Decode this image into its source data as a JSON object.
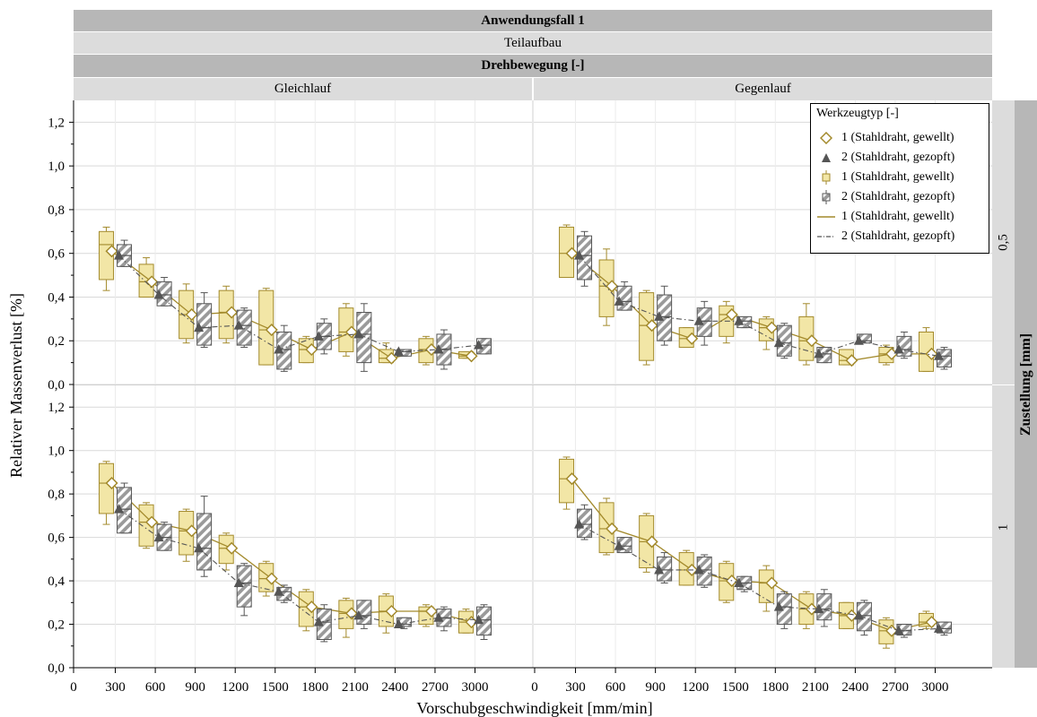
{
  "header": {
    "title": "Anwendungsfall 1",
    "subtitle": "Teilaufbau",
    "facet_col_title": "Drehbewegung [-]",
    "facet_cols": [
      "Gleichlauf",
      "Gegenlauf"
    ],
    "facet_row_title": "Zustellung [mm]",
    "facet_rows": [
      "0,5",
      "1"
    ]
  },
  "axes": {
    "xlabel": "Vorschubgeschwindigkeit [mm/min]",
    "ylabel": "Relativer Massenverlust [%]",
    "x_ticks": [
      "0",
      "300",
      "600",
      "900",
      "1200",
      "1500",
      "1800",
      "2100",
      "2400",
      "2700",
      "3000"
    ],
    "y_ticks": [
      "0,0",
      "0,2",
      "0,4",
      "0,6",
      "0,8",
      "1,0",
      "1,2"
    ]
  },
  "legend": {
    "title": "Werkzeugtyp [-]",
    "entries": [
      {
        "label": "1 (Stahldraht, gewellt)",
        "symbol": "diamond-icon"
      },
      {
        "label": "2 (Stahldraht, gezopft)",
        "symbol": "triangle-icon"
      },
      {
        "label": "1 (Stahldraht, gewellt)",
        "symbol": "box-yellow-icon"
      },
      {
        "label": "2 (Stahldraht, gezopft)",
        "symbol": "box-hatched-icon"
      },
      {
        "label": "1 (Stahldraht, gewellt)",
        "symbol": "solid-line-icon"
      },
      {
        "label": "2 (Stahldraht, gezopft)",
        "symbol": "dashdot-line-icon"
      }
    ]
  },
  "colors": {
    "type1": "#a38a2c",
    "type1_fill": "#f2e6a6",
    "type2": "#555555",
    "type2_fill": "#9a9a9a",
    "grid": "#d9d9d9",
    "header_dark": "#b7b7b7",
    "header_light": "#dcdcdc"
  },
  "chart_data": {
    "type": "box",
    "x": [
      300,
      600,
      900,
      1200,
      1500,
      1800,
      2100,
      2400,
      2700,
      3000
    ],
    "xlim": [
      0,
      3200
    ],
    "ylim": [
      0,
      1.3
    ],
    "panels": [
      {
        "col": "Gleichlauf",
        "row": "0,5",
        "series": [
          {
            "name": "1 (Stahldraht, gewellt)",
            "means": [
              0.61,
              0.47,
              0.32,
              0.33,
              0.25,
              0.16,
              0.24,
              0.12,
              0.16,
              0.13
            ],
            "boxes": [
              [
                0.43,
                0.48,
                0.64,
                0.7,
                0.72
              ],
              [
                0.4,
                0.4,
                0.47,
                0.55,
                0.58
              ],
              [
                0.19,
                0.21,
                0.32,
                0.43,
                0.46
              ],
              [
                0.19,
                0.21,
                0.33,
                0.43,
                0.45
              ],
              [
                0.09,
                0.09,
                0.25,
                0.43,
                0.44
              ],
              [
                0.1,
                0.1,
                0.16,
                0.21,
                0.22
              ],
              [
                0.13,
                0.15,
                0.24,
                0.35,
                0.37
              ],
              [
                0.1,
                0.1,
                0.12,
                0.16,
                0.19
              ],
              [
                0.09,
                0.1,
                0.16,
                0.21,
                0.22
              ],
              [
                0.12,
                0.12,
                0.13,
                0.15,
                0.15
              ]
            ]
          },
          {
            "name": "2 (Stahldraht, gezopft)",
            "means": [
              0.59,
              0.41,
              0.26,
              0.27,
              0.16,
              0.22,
              0.23,
              0.15,
              0.16,
              0.18
            ],
            "boxes": [
              [
                0.54,
                0.54,
                0.59,
                0.64,
                0.66
              ],
              [
                0.36,
                0.36,
                0.41,
                0.47,
                0.49
              ],
              [
                0.17,
                0.18,
                0.26,
                0.37,
                0.42
              ],
              [
                0.17,
                0.18,
                0.27,
                0.34,
                0.35
              ],
              [
                0.06,
                0.07,
                0.16,
                0.24,
                0.27
              ],
              [
                0.14,
                0.16,
                0.22,
                0.28,
                0.3
              ],
              [
                0.06,
                0.1,
                0.23,
                0.33,
                0.37
              ],
              [
                0.13,
                0.13,
                0.15,
                0.16,
                0.16
              ],
              [
                0.07,
                0.09,
                0.16,
                0.23,
                0.25
              ],
              [
                0.14,
                0.14,
                0.18,
                0.21,
                0.21
              ]
            ]
          }
        ]
      },
      {
        "col": "Gegenlauf",
        "row": "0,5",
        "series": [
          {
            "name": "1 (Stahldraht, gewellt)",
            "means": [
              0.6,
              0.45,
              0.27,
              0.21,
              0.32,
              0.26,
              0.2,
              0.11,
              0.14,
              0.14
            ],
            "boxes": [
              [
                0.49,
                0.49,
                0.6,
                0.72,
                0.73
              ],
              [
                0.27,
                0.31,
                0.45,
                0.57,
                0.62
              ],
              [
                0.09,
                0.11,
                0.27,
                0.42,
                0.43
              ],
              [
                0.17,
                0.17,
                0.21,
                0.26,
                0.26
              ],
              [
                0.19,
                0.22,
                0.32,
                0.36,
                0.38
              ],
              [
                0.16,
                0.2,
                0.26,
                0.3,
                0.31
              ],
              [
                0.09,
                0.11,
                0.2,
                0.31,
                0.37
              ],
              [
                0.09,
                0.09,
                0.11,
                0.16,
                0.16
              ],
              [
                0.09,
                0.1,
                0.14,
                0.17,
                0.18
              ],
              [
                0.06,
                0.06,
                0.14,
                0.24,
                0.26
              ]
            ]
          },
          {
            "name": "2 (Stahldraht, gezopft)",
            "means": [
              0.59,
              0.38,
              0.31,
              0.29,
              0.29,
              0.19,
              0.14,
              0.2,
              0.16,
              0.13
            ],
            "boxes": [
              [
                0.45,
                0.48,
                0.59,
                0.68,
                0.7
              ],
              [
                0.34,
                0.34,
                0.38,
                0.45,
                0.47
              ],
              [
                0.18,
                0.2,
                0.31,
                0.41,
                0.45
              ],
              [
                0.18,
                0.22,
                0.29,
                0.35,
                0.38
              ],
              [
                0.26,
                0.26,
                0.29,
                0.31,
                0.31
              ],
              [
                0.12,
                0.13,
                0.19,
                0.27,
                0.28
              ],
              [
                0.1,
                0.1,
                0.14,
                0.17,
                0.17
              ],
              [
                0.19,
                0.19,
                0.2,
                0.23,
                0.23
              ],
              [
                0.12,
                0.13,
                0.16,
                0.22,
                0.24
              ],
              [
                0.07,
                0.08,
                0.13,
                0.16,
                0.17
              ]
            ]
          }
        ]
      },
      {
        "col": "Gleichlauf",
        "row": "1",
        "series": [
          {
            "name": "1 (Stahldraht, gewellt)",
            "means": [
              0.85,
              0.67,
              0.63,
              0.55,
              0.41,
              0.28,
              0.25,
              0.26,
              0.26,
              0.21
            ],
            "boxes": [
              [
                0.66,
                0.71,
                0.85,
                0.94,
                0.95
              ],
              [
                0.55,
                0.56,
                0.67,
                0.75,
                0.76
              ],
              [
                0.49,
                0.52,
                0.63,
                0.72,
                0.73
              ],
              [
                0.45,
                0.48,
                0.55,
                0.61,
                0.62
              ],
              [
                0.33,
                0.35,
                0.41,
                0.48,
                0.49
              ],
              [
                0.17,
                0.19,
                0.28,
                0.35,
                0.36
              ],
              [
                0.14,
                0.18,
                0.25,
                0.31,
                0.32
              ],
              [
                0.16,
                0.19,
                0.26,
                0.33,
                0.34
              ],
              [
                0.19,
                0.2,
                0.26,
                0.28,
                0.29
              ],
              [
                0.16,
                0.16,
                0.21,
                0.26,
                0.27
              ]
            ]
          },
          {
            "name": "2 (Stahldraht, gezopft)",
            "means": [
              0.73,
              0.6,
              0.55,
              0.39,
              0.35,
              0.21,
              0.24,
              0.2,
              0.23,
              0.22
            ],
            "boxes": [
              [
                0.62,
                0.62,
                0.73,
                0.83,
                0.85
              ],
              [
                0.54,
                0.54,
                0.6,
                0.66,
                0.67
              ],
              [
                0.42,
                0.45,
                0.55,
                0.71,
                0.79
              ],
              [
                0.24,
                0.28,
                0.39,
                0.47,
                0.48
              ],
              [
                0.3,
                0.31,
                0.35,
                0.37,
                0.38
              ],
              [
                0.12,
                0.13,
                0.21,
                0.27,
                0.29
              ],
              [
                0.18,
                0.2,
                0.24,
                0.31,
                0.31
              ],
              [
                0.18,
                0.19,
                0.2,
                0.23,
                0.23
              ],
              [
                0.17,
                0.19,
                0.23,
                0.27,
                0.28
              ],
              [
                0.13,
                0.15,
                0.22,
                0.28,
                0.29
              ]
            ]
          }
        ]
      },
      {
        "col": "Gegenlauf",
        "row": "1",
        "series": [
          {
            "name": "1 (Stahldraht, gewellt)",
            "means": [
              0.87,
              0.64,
              0.58,
              0.45,
              0.4,
              0.39,
              0.27,
              0.24,
              0.17,
              0.21
            ],
            "boxes": [
              [
                0.73,
                0.76,
                0.87,
                0.96,
                0.97
              ],
              [
                0.52,
                0.53,
                0.64,
                0.76,
                0.78
              ],
              [
                0.44,
                0.46,
                0.58,
                0.7,
                0.71
              ],
              [
                0.38,
                0.38,
                0.45,
                0.53,
                0.54
              ],
              [
                0.3,
                0.31,
                0.4,
                0.48,
                0.49
              ],
              [
                0.26,
                0.3,
                0.39,
                0.45,
                0.47
              ],
              [
                0.18,
                0.2,
                0.27,
                0.34,
                0.35
              ],
              [
                0.18,
                0.18,
                0.24,
                0.3,
                0.3
              ],
              [
                0.09,
                0.11,
                0.17,
                0.22,
                0.23
              ],
              [
                0.18,
                0.19,
                0.21,
                0.25,
                0.26
              ]
            ]
          },
          {
            "name": "2 (Stahldraht, gezopft)",
            "means": [
              0.66,
              0.56,
              0.45,
              0.45,
              0.39,
              0.28,
              0.27,
              0.24,
              0.17,
              0.18
            ],
            "boxes": [
              [
                0.59,
                0.6,
                0.66,
                0.73,
                0.75
              ],
              [
                0.53,
                0.53,
                0.56,
                0.6,
                0.6
              ],
              [
                0.39,
                0.4,
                0.45,
                0.51,
                0.53
              ],
              [
                0.37,
                0.38,
                0.45,
                0.51,
                0.52
              ],
              [
                0.35,
                0.36,
                0.39,
                0.42,
                0.42
              ],
              [
                0.18,
                0.2,
                0.28,
                0.34,
                0.35
              ],
              [
                0.19,
                0.22,
                0.27,
                0.34,
                0.36
              ],
              [
                0.15,
                0.17,
                0.24,
                0.3,
                0.31
              ],
              [
                0.14,
                0.15,
                0.17,
                0.2,
                0.2
              ],
              [
                0.15,
                0.16,
                0.18,
                0.21,
                0.21
              ]
            ]
          }
        ]
      }
    ]
  }
}
